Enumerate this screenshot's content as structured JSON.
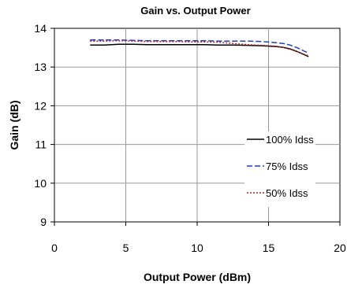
{
  "chart_data": {
    "type": "line",
    "title": "Gain vs. Output Power",
    "xlabel": "Output  Power (dBm)",
    "ylabel": "Gain (dB)",
    "xlim": [
      0,
      20
    ],
    "ylim": [
      9,
      14
    ],
    "xticks": [
      0,
      5,
      10,
      15,
      20
    ],
    "yticks": [
      9,
      10,
      11,
      12,
      13,
      14
    ],
    "grid": true,
    "legend_position": "right",
    "series": [
      {
        "name": "100% Idss",
        "color": "#000000",
        "dash": "solid",
        "x": [
          2.5,
          3.5,
          4.5,
          5.5,
          6.5,
          7.5,
          8.5,
          9.5,
          10.5,
          11.5,
          12.5,
          13.5,
          14.5,
          15.5,
          16.0,
          16.5,
          17.0,
          17.5,
          17.8
        ],
        "y": [
          13.57,
          13.57,
          13.59,
          13.59,
          13.58,
          13.58,
          13.58,
          13.58,
          13.58,
          13.57,
          13.57,
          13.56,
          13.55,
          13.53,
          13.51,
          13.47,
          13.4,
          13.32,
          13.27
        ]
      },
      {
        "name": "75% Idss",
        "color": "#1f3fbf",
        "dash": "dashed",
        "x": [
          2.5,
          3.5,
          4.5,
          5.5,
          6.5,
          7.5,
          8.5,
          9.5,
          10.5,
          11.5,
          12.5,
          13.5,
          14.5,
          15.5,
          16.0,
          16.5,
          17.0,
          17.5,
          17.8
        ],
        "y": [
          13.7,
          13.7,
          13.7,
          13.69,
          13.68,
          13.68,
          13.68,
          13.68,
          13.68,
          13.67,
          13.67,
          13.67,
          13.66,
          13.63,
          13.61,
          13.57,
          13.5,
          13.41,
          13.36
        ]
      },
      {
        "name": "50% Idss",
        "color": "#b22222",
        "dash": "dotted",
        "x": [
          2.5,
          3.5,
          4.5,
          5.5,
          6.5,
          7.5,
          8.5,
          9.5,
          10.5,
          11.5,
          12.5,
          13.5,
          14.5,
          15.5,
          16.0,
          16.5,
          17.0,
          17.5,
          17.8
        ],
        "y": [
          13.67,
          13.67,
          13.68,
          13.67,
          13.66,
          13.66,
          13.66,
          13.65,
          13.65,
          13.64,
          13.61,
          13.58,
          13.56,
          13.54,
          13.51,
          13.46,
          13.4,
          13.33,
          13.29
        ]
      }
    ]
  }
}
